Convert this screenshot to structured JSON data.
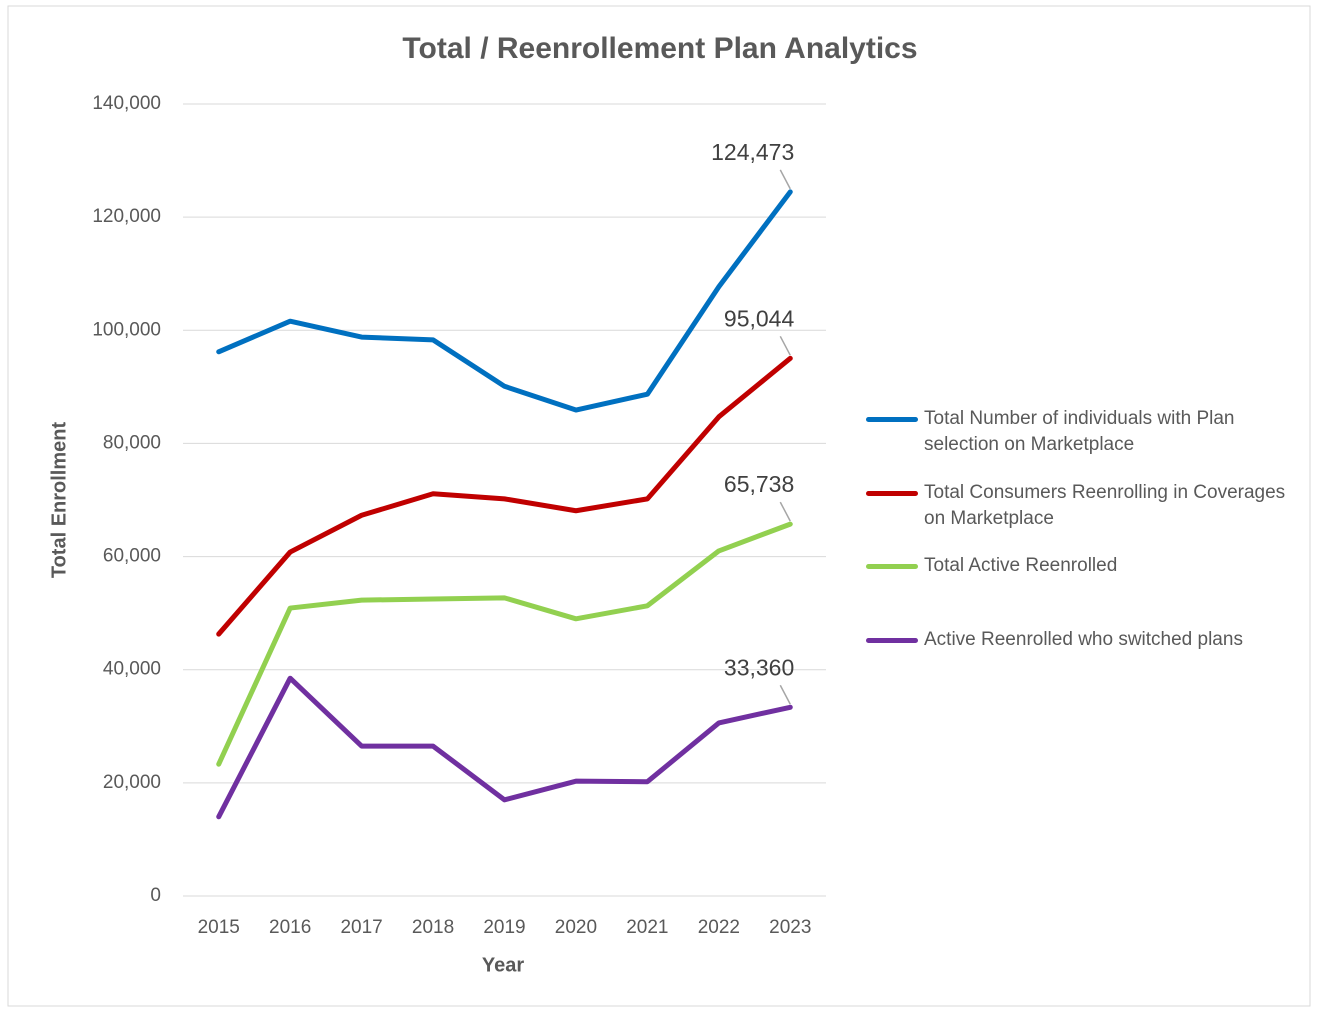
{
  "chart_data": {
    "type": "line",
    "title": "Total / Reenrollement Plan Analytics",
    "x_label": "Year",
    "y_label": "Total Enrollment",
    "categories": [
      "2015",
      "2016",
      "2017",
      "2018",
      "2019",
      "2020",
      "2021",
      "2022",
      "2023"
    ],
    "series": [
      {
        "name": "Total Number of individuals with Plan selection on Marketplace",
        "color": "#0070c0",
        "values": [
          96200,
          101600,
          98800,
          98300,
          90100,
          85900,
          88700,
          107700,
          124473
        ],
        "value_labels": [
          null,
          null,
          null,
          null,
          null,
          null,
          null,
          null,
          "124,473"
        ]
      },
      {
        "name": "Total Consumers Reenrolling in Coverages on Marketplace",
        "color": "#c00000",
        "values": [
          46300,
          60800,
          67300,
          71100,
          70200,
          68100,
          70200,
          84700,
          95044
        ],
        "value_labels": [
          null,
          null,
          null,
          null,
          null,
          null,
          null,
          null,
          "95,044"
        ]
      },
      {
        "name": "Total Active Reenrolled",
        "color": "#92d050",
        "values": [
          23300,
          50900,
          52300,
          52500,
          52700,
          49000,
          51300,
          61000,
          65738
        ],
        "value_labels": [
          null,
          null,
          null,
          null,
          null,
          null,
          null,
          null,
          "65,738"
        ]
      },
      {
        "name": "Active Reenrolled who switched plans",
        "color": "#7030a0",
        "values": [
          14000,
          38500,
          26500,
          26500,
          17000,
          20300,
          20200,
          30600,
          33360
        ],
        "value_labels": [
          null,
          null,
          null,
          null,
          null,
          null,
          null,
          null,
          "33,360"
        ]
      }
    ],
    "ylim": [
      0,
      140000
    ],
    "yticks": [
      0,
      {
        "value": 20000,
        "label": "20,000"
      },
      {
        "value": 40000,
        "label": "40,000"
      },
      {
        "value": 60000,
        "label": "60,000"
      },
      {
        "value": 80000,
        "label": "80,000"
      },
      {
        "value": 100000,
        "label": "100,000"
      },
      {
        "value": 120000,
        "label": "120,000"
      },
      {
        "value": 140000,
        "label": "140,000"
      }
    ],
    "grid": true,
    "legend": "right"
  }
}
